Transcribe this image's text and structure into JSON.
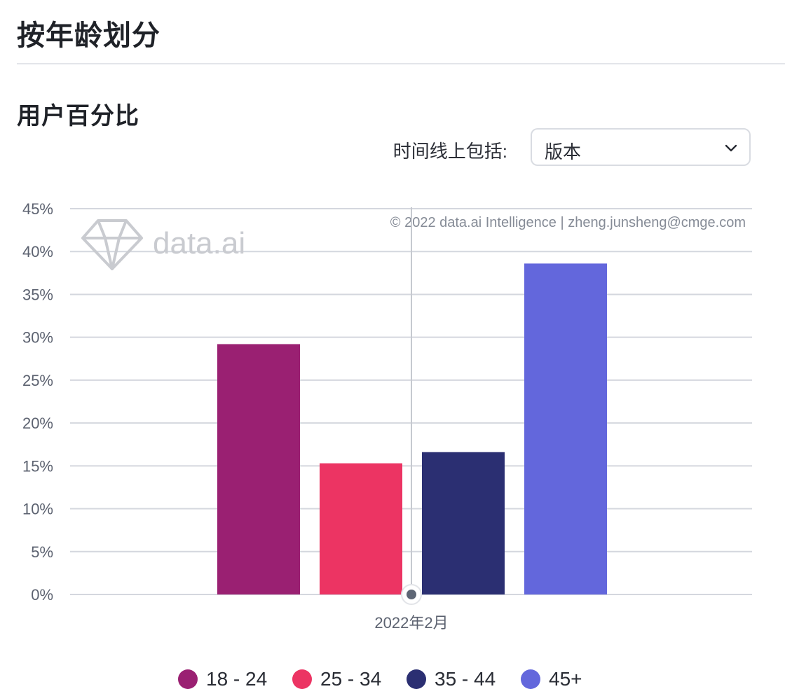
{
  "header": {
    "title": "按年龄划分"
  },
  "chart_header": {
    "title": "用户百分比"
  },
  "timeline": {
    "label": "时间线上包括:",
    "selected": "版本"
  },
  "icons": {
    "dropdown": "chevron-down-icon",
    "watermark_logo": "diamond-logo-icon"
  },
  "watermark": {
    "brand": "data.ai",
    "copyright": "© 2022 data.ai Intelligence | zheng.junsheng@cmge.com"
  },
  "colors": {
    "grid": "#d4d7de",
    "axis_text": "#5c6270",
    "marker": "#5e6675"
  },
  "chart_data": {
    "type": "bar",
    "title": "用户百分比",
    "categories": [
      "2022年2月"
    ],
    "series": [
      {
        "name": "18 - 24",
        "values": [
          29.2
        ],
        "color": "#9a2072"
      },
      {
        "name": "25 - 34",
        "values": [
          15.3
        ],
        "color": "#ec3463"
      },
      {
        "name": "35 - 44",
        "values": [
          16.6
        ],
        "color": "#2b2f72"
      },
      {
        "name": "45+",
        "values": [
          38.6
        ],
        "color": "#6367dc"
      }
    ],
    "ylim": [
      0,
      45
    ],
    "yticks": [
      0,
      5,
      10,
      15,
      20,
      25,
      30,
      35,
      40,
      45
    ],
    "ytick_labels": [
      "0%",
      "5%",
      "10%",
      "15%",
      "20%",
      "25%",
      "30%",
      "35%",
      "40%",
      "45%"
    ],
    "xlabel": "",
    "ylabel": "",
    "grid": true,
    "legend": "bottom"
  }
}
